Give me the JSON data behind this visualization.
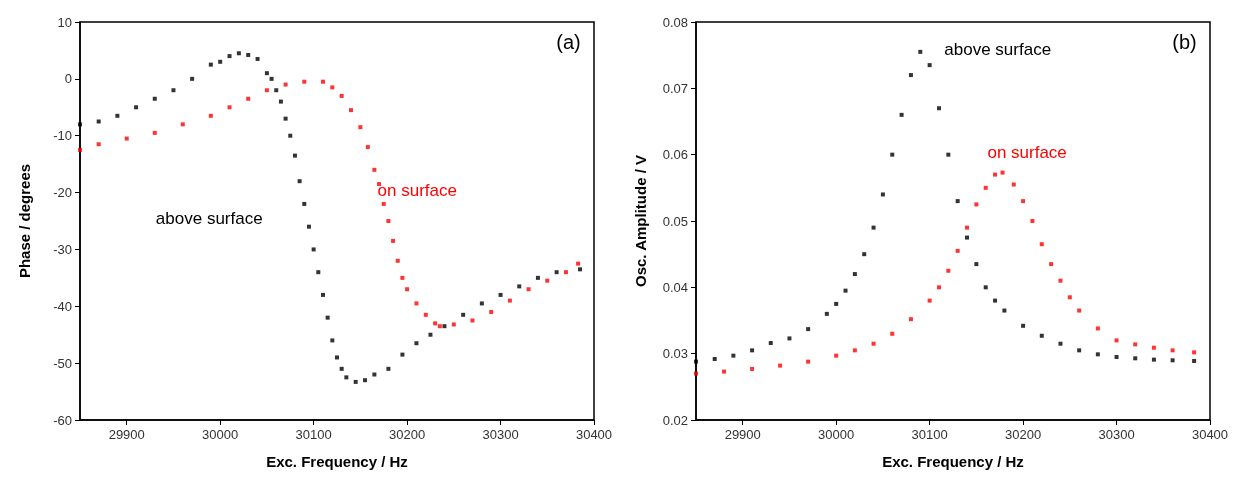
{
  "chart_data": [
    {
      "type": "scatter",
      "xlabel": "Exc. Frequency / Hz",
      "ylabel": "Phase / degrees",
      "annotations": [
        "(a)"
      ],
      "marker": "square",
      "grid": false,
      "xlim": [
        29850,
        30400
      ],
      "xticks": [
        29900,
        30000,
        30100,
        30200,
        30300,
        30400
      ],
      "ylim": [
        -60,
        10
      ],
      "yticks": [
        -60,
        -50,
        -40,
        -30,
        -20,
        -10,
        0,
        10
      ],
      "series": [
        {
          "name": "above surface",
          "color": "#000000",
          "x": [
            29850,
            29870,
            29890,
            29910,
            29930,
            29950,
            29970,
            29990,
            30000,
            30010,
            30020,
            30030,
            30040,
            30050,
            30055,
            30060,
            30065,
            30070,
            30075,
            30080,
            30085,
            30090,
            30095,
            30100,
            30105,
            30110,
            30115,
            30120,
            30125,
            30130,
            30135,
            30145,
            30155,
            30165,
            30180,
            30195,
            30210,
            30225,
            30240,
            30260,
            30280,
            30300,
            30320,
            30340,
            30360,
            30385
          ],
          "values": [
            -8,
            -7.5,
            -6.5,
            -5,
            -3.5,
            -2,
            0,
            2.5,
            3,
            4,
            4.5,
            4.2,
            3.5,
            1,
            0,
            -2,
            -4,
            -7,
            -10,
            -13.5,
            -18,
            -22,
            -26,
            -30,
            -34,
            -38,
            -42,
            -46,
            -49,
            -51,
            -52.5,
            -53.3,
            -53,
            -52,
            -51,
            -48.5,
            -46.5,
            -45,
            -43.5,
            -41.5,
            -39.5,
            -38,
            -36.5,
            -35,
            -34,
            -33.5
          ]
        },
        {
          "name": "on surface",
          "color": "#ff0000",
          "x": [
            29850,
            29870,
            29900,
            29930,
            29960,
            29990,
            30010,
            30030,
            30050,
            30070,
            30090,
            30110,
            30120,
            30130,
            30140,
            30150,
            30158,
            30165,
            30170,
            30175,
            30180,
            30185,
            30190,
            30195,
            30200,
            30210,
            30220,
            30230,
            30235,
            30250,
            30270,
            30290,
            30310,
            30330,
            30350,
            30370,
            30383
          ],
          "values": [
            -12.5,
            -11.5,
            -10.5,
            -9.5,
            -8,
            -6.5,
            -5,
            -3.5,
            -2,
            -1,
            -0.5,
            -0.5,
            -1.5,
            -3,
            -5.5,
            -8.5,
            -12,
            -16,
            -18.5,
            -22,
            -25,
            -28.5,
            -32,
            -35,
            -37,
            -39.5,
            -41.5,
            -43,
            -43.5,
            -43.2,
            -42.5,
            -41,
            -39,
            -37,
            -35.5,
            -34,
            -32.5
          ]
        }
      ]
    },
    {
      "type": "scatter",
      "xlabel": "Exc. Frequency / Hz",
      "ylabel": "Osc. Amplitude / V",
      "annotations": [
        "(b)"
      ],
      "marker": "square",
      "grid": false,
      "xlim": [
        29850,
        30400
      ],
      "xticks": [
        29900,
        30000,
        30100,
        30200,
        30300,
        30400
      ],
      "ylim": [
        0.02,
        0.08
      ],
      "yticks": [
        0.02,
        0.03,
        0.04,
        0.05,
        0.06,
        0.07,
        0.08
      ],
      "series": [
        {
          "name": "above surface",
          "color": "#000000",
          "x": [
            29850,
            29870,
            29890,
            29910,
            29930,
            29950,
            29970,
            29990,
            30000,
            30010,
            30020,
            30030,
            30040,
            30050,
            30060,
            30070,
            30080,
            30090,
            30100,
            30110,
            30120,
            30130,
            30140,
            30150,
            30160,
            30170,
            30180,
            30200,
            30220,
            30240,
            30260,
            30280,
            30300,
            30320,
            30340,
            30360,
            30383
          ],
          "values": [
            0.0288,
            0.0292,
            0.0297,
            0.0305,
            0.0316,
            0.0323,
            0.0337,
            0.036,
            0.0375,
            0.0395,
            0.042,
            0.045,
            0.049,
            0.054,
            0.06,
            0.066,
            0.072,
            0.0755,
            0.0735,
            0.067,
            0.06,
            0.053,
            0.0475,
            0.0435,
            0.04,
            0.038,
            0.0365,
            0.0342,
            0.0327,
            0.0315,
            0.0305,
            0.0299,
            0.0295,
            0.0293,
            0.0291,
            0.029,
            0.0289
          ]
        },
        {
          "name": "on surface",
          "color": "#ff0000",
          "x": [
            29850,
            29880,
            29910,
            29940,
            29970,
            30000,
            30020,
            30040,
            30060,
            30080,
            30100,
            30110,
            30120,
            30130,
            30140,
            30150,
            30160,
            30170,
            30178,
            30190,
            30200,
            30210,
            30220,
            30230,
            30240,
            30250,
            30260,
            30280,
            30300,
            30320,
            30340,
            30360,
            30383
          ],
          "values": [
            0.027,
            0.0273,
            0.0277,
            0.0282,
            0.0288,
            0.0297,
            0.0305,
            0.0315,
            0.033,
            0.0352,
            0.038,
            0.04,
            0.0425,
            0.0455,
            0.049,
            0.0525,
            0.055,
            0.057,
            0.0573,
            0.0555,
            0.053,
            0.05,
            0.0465,
            0.0435,
            0.041,
            0.0385,
            0.0365,
            0.0338,
            0.032,
            0.0314,
            0.0309,
            0.0305,
            0.0302
          ]
        }
      ]
    }
  ]
}
